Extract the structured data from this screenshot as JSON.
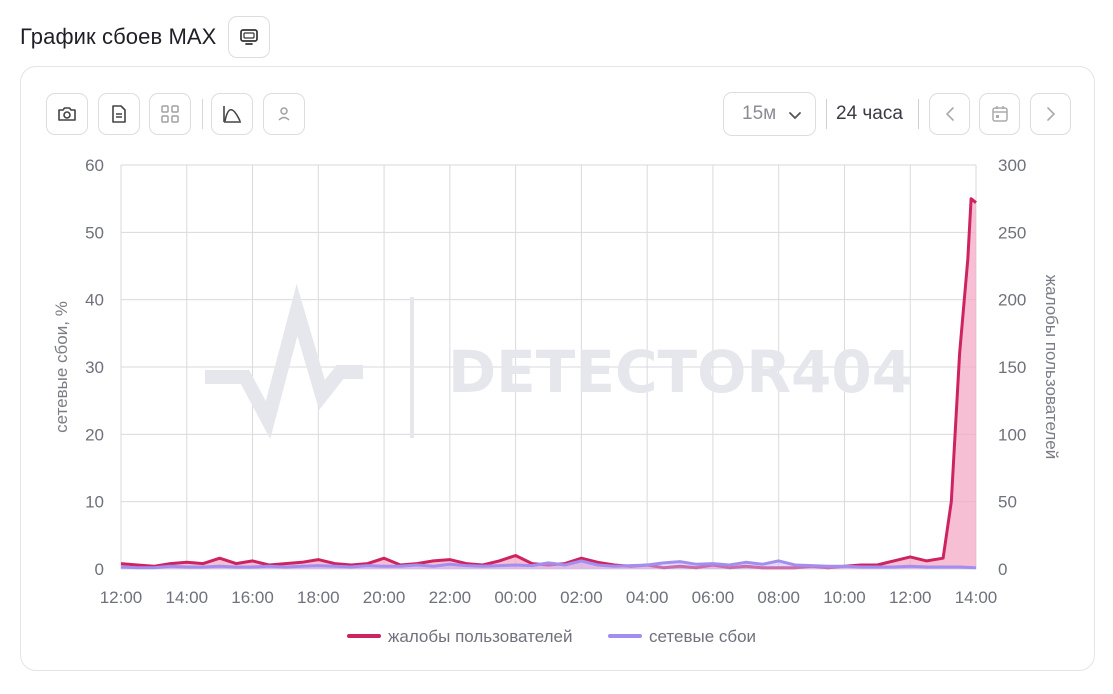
{
  "header": {
    "title": "График сбоев MAX",
    "title_button_icon": "monitor-icon"
  },
  "toolbar": {
    "left_icons": [
      "camera-icon",
      "document-icon",
      "grid-icon",
      "chart-curve-icon",
      "person-icon"
    ],
    "interval": {
      "selected": "15м",
      "icon": "chevron-down-icon"
    },
    "range_label": "24 часа",
    "nav_icons": [
      "chevron-left-icon",
      "calendar-icon",
      "chevron-right-icon"
    ]
  },
  "colors": {
    "complaints": "#cd2461",
    "complaints_fill": "#f4aac6",
    "network": "#a38ef0",
    "network_fill": "#c6b8f8",
    "grid": "#d9dade",
    "watermark": "#e6e7ec"
  },
  "watermark": "DETECTOR404",
  "chart_data": {
    "type": "line",
    "title": "",
    "x_ticks": [
      "12:00",
      "14:00",
      "16:00",
      "18:00",
      "20:00",
      "22:00",
      "00:00",
      "02:00",
      "04:00",
      "06:00",
      "08:00",
      "10:00",
      "12:00",
      "14:00"
    ],
    "x_range_hours": [
      0,
      26
    ],
    "ylabel_left": "сетевые сбои, %",
    "ylabel_right": "жалобы пользователей",
    "ylim_left": [
      0,
      60
    ],
    "ylim_right": [
      0,
      300
    ],
    "y_ticks_left": [
      "0",
      "10",
      "20",
      "30",
      "40",
      "50",
      "60"
    ],
    "y_ticks_right": [
      "0",
      "50",
      "100",
      "150",
      "200",
      "250",
      "300"
    ],
    "grid": true,
    "legend_position": "bottom",
    "series": [
      {
        "name": "жалобы пользователей",
        "axis": "right",
        "x": [
          0,
          0.5,
          1,
          1.5,
          2,
          2.5,
          3,
          3.5,
          4,
          4.5,
          5,
          5.5,
          6,
          6.5,
          7,
          7.5,
          8,
          8.5,
          9,
          9.5,
          10,
          10.5,
          11,
          11.5,
          12,
          12.5,
          13,
          13.5,
          14,
          14.5,
          15,
          15.5,
          16,
          16.5,
          17,
          17.5,
          18,
          18.5,
          19,
          19.5,
          20,
          20.5,
          21,
          21.5,
          22,
          22.5,
          23,
          23.5,
          24,
          24.5,
          25,
          25.25,
          25.5,
          25.75,
          25.85,
          26
        ],
        "y": [
          4,
          3,
          2,
          4,
          5,
          4,
          8,
          4,
          6,
          3,
          4,
          5,
          7,
          4,
          3,
          4,
          8,
          3,
          4,
          6,
          7,
          4,
          3,
          6,
          10,
          4,
          3,
          4,
          8,
          5,
          3,
          2,
          3,
          1,
          2,
          1,
          3,
          1,
          2,
          1,
          1,
          1,
          2,
          1,
          2,
          3,
          3,
          6,
          9,
          6,
          8,
          50,
          160,
          230,
          275,
          272
        ]
      },
      {
        "name": "сетевые сбои",
        "axis": "left",
        "x": [
          0,
          0.5,
          1,
          1.5,
          2,
          2.5,
          3,
          3.5,
          4,
          4.5,
          5,
          5.5,
          6,
          6.5,
          7,
          7.5,
          8,
          8.5,
          9,
          9.5,
          10,
          10.5,
          11,
          11.5,
          12,
          12.5,
          13,
          13.5,
          14,
          14.5,
          15,
          15.5,
          16,
          16.5,
          17,
          17.5,
          18,
          18.5,
          19,
          19.5,
          20,
          20.5,
          21,
          21.5,
          22,
          22.5,
          23,
          23.5,
          24,
          24.5,
          25,
          25.5,
          26
        ],
        "y": [
          0.3,
          0.2,
          0.2,
          0.4,
          0.3,
          0.3,
          0.4,
          0.3,
          0.3,
          0.4,
          0.3,
          0.4,
          0.5,
          0.4,
          0.3,
          0.5,
          0.4,
          0.4,
          0.6,
          0.4,
          0.7,
          0.5,
          0.4,
          0.5,
          0.6,
          0.5,
          0.9,
          0.6,
          1.2,
          0.6,
          0.4,
          0.5,
          0.6,
          0.9,
          1.1,
          0.7,
          0.8,
          0.6,
          1.0,
          0.7,
          1.2,
          0.6,
          0.5,
          0.4,
          0.4,
          0.3,
          0.3,
          0.3,
          0.4,
          0.3,
          0.3,
          0.3,
          0.2
        ]
      }
    ]
  }
}
